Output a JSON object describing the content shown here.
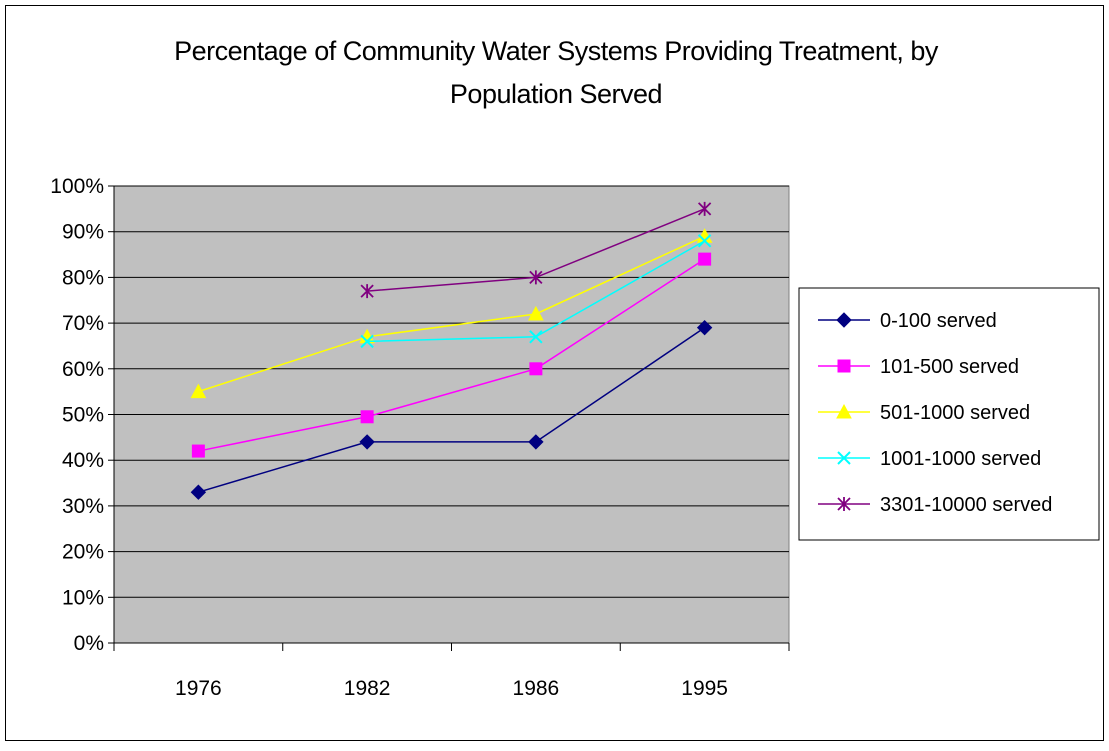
{
  "chart_data": {
    "type": "line",
    "title_lines": [
      "Percentage of Community Water Systems Providing Treatment, by",
      "Population Served"
    ],
    "xlabel": "",
    "ylabel": "",
    "categories": [
      "1976",
      "1982",
      "1986",
      "1995"
    ],
    "ylim": [
      0,
      100
    ],
    "y_ticks": [
      "0%",
      "10%",
      "20%",
      "30%",
      "40%",
      "50%",
      "60%",
      "70%",
      "80%",
      "90%",
      "100%"
    ],
    "grid": true,
    "plot_background": "#c0c0c0",
    "legend_position": "right",
    "series": [
      {
        "name": "0-100 served",
        "color": "#000080",
        "marker": "diamond",
        "values": [
          33,
          44,
          44,
          69
        ]
      },
      {
        "name": "101-500 served",
        "color": "#ff00ff",
        "marker": "square",
        "values": [
          42,
          49.5,
          60,
          84
        ]
      },
      {
        "name": "501-1000 served",
        "color": "#ffff00",
        "marker": "triangle",
        "values": [
          55,
          67,
          72,
          89
        ]
      },
      {
        "name": "1001-1000 served",
        "color": "#00ffff",
        "marker": "x",
        "values": [
          null,
          66,
          67,
          88
        ]
      },
      {
        "name": "3301-10000 served",
        "color": "#800080",
        "marker": "star",
        "values": [
          null,
          77,
          80,
          95
        ]
      }
    ]
  }
}
